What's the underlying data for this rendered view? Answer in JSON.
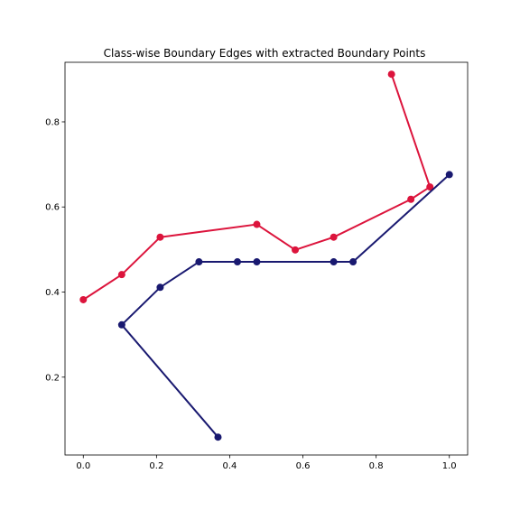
{
  "chart_data": {
    "type": "line",
    "title": "Class-wise Boundary Edges with extracted Boundary Points",
    "xlabel": "",
    "ylabel": "",
    "xlim": [
      -0.05,
      1.05
    ],
    "ylim": [
      0.017,
      0.94
    ],
    "xticks": [
      0.0,
      0.2,
      0.4,
      0.6,
      0.8,
      1.0
    ],
    "xtick_labels": [
      "0.0",
      "0.2",
      "0.4",
      "0.6",
      "0.8",
      "1.0"
    ],
    "yticks": [
      0.2,
      0.4,
      0.6,
      0.8
    ],
    "ytick_labels": [
      "0.2",
      "0.4",
      "0.6",
      "0.8"
    ],
    "grid": false,
    "series": [
      {
        "color": "#dc143c",
        "points": [
          [
            0.0,
            0.382
          ],
          [
            0.105,
            0.441
          ],
          [
            0.21,
            0.529
          ],
          [
            0.474,
            0.559
          ],
          [
            0.579,
            0.499
          ],
          [
            0.684,
            0.529
          ],
          [
            0.895,
            0.618
          ],
          [
            0.947,
            0.647
          ],
          [
            0.842,
            0.912
          ]
        ]
      },
      {
        "color": "#191970",
        "points": [
          [
            0.368,
            0.059
          ],
          [
            0.105,
            0.323
          ],
          [
            0.21,
            0.411
          ],
          [
            0.316,
            0.471
          ],
          [
            0.421,
            0.471
          ],
          [
            0.474,
            0.471
          ],
          [
            0.684,
            0.471
          ],
          [
            0.737,
            0.471
          ],
          [
            1.0,
            0.676
          ]
        ]
      }
    ]
  }
}
